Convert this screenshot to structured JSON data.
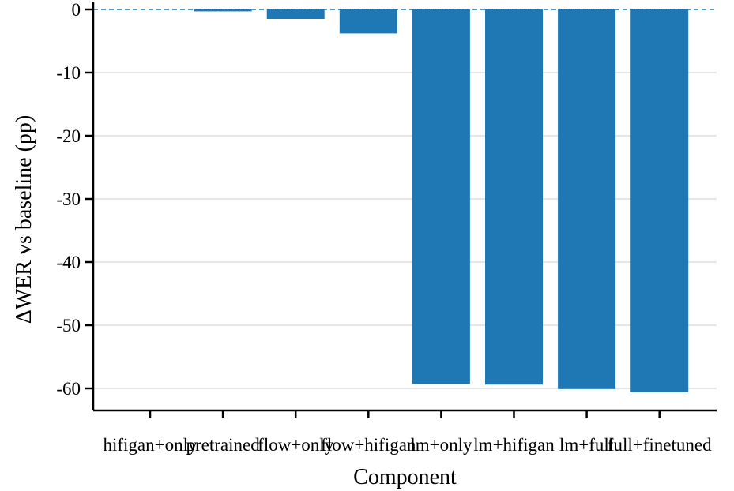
{
  "chart_data": {
    "type": "bar",
    "title": "",
    "xlabel": "Component",
    "ylabel": "ΔWER vs baseline (pp)",
    "categories": [
      "hifigan+only",
      "pretrained",
      "flow+only",
      "flow+hifigan",
      "lm+only",
      "lm+hifigan",
      "lm+full",
      "full+finetuned"
    ],
    "values": [
      0.0,
      -0.3,
      -1.5,
      -3.8,
      -59.3,
      -59.4,
      -60.1,
      -60.6
    ],
    "ylim": [
      -63.5,
      0
    ],
    "yticks": [
      0,
      -10,
      -20,
      -30,
      -40,
      -50,
      -60
    ],
    "ytick_labels": [
      "0",
      "-10",
      "-20",
      "-30",
      "-40",
      "-50",
      "-60"
    ],
    "grid": "horizontal",
    "bar_color": "#1f77b4",
    "baseline": 0,
    "baseline_color": "#1f77b4"
  }
}
